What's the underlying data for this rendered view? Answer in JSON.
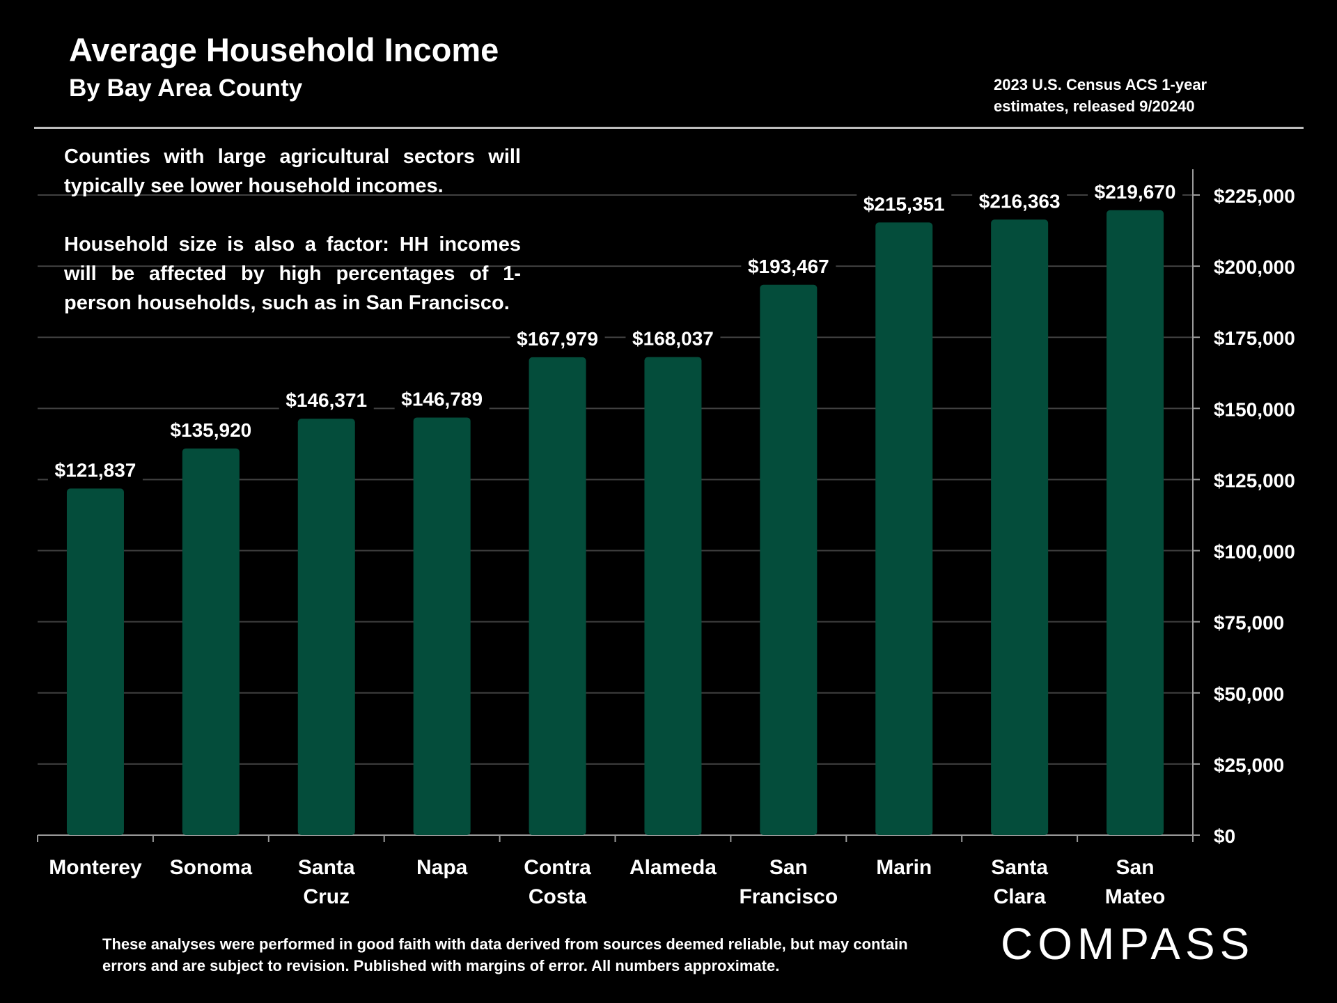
{
  "header": {
    "title": "Average Household Income",
    "subtitle": "By Bay Area County",
    "source_line1": "2023 U.S. Census ACS 1-year",
    "source_line2": "estimates, released 9/20240"
  },
  "note": {
    "paragraph1": "Counties with large agricultural sectors will typically see lower household incomes.",
    "paragraph2": "Household size is also a factor: HH incomes will be affected by high percentages of 1-person households, such as in San Francisco."
  },
  "footer": {
    "disclaimer": "These analyses were performed in good faith with data derived from sources deemed reliable, but may contain errors and are subject to revision.  Published with margins of error. All numbers approximate.",
    "logo_text": "COMPASS"
  },
  "colors": {
    "bar": "#044d3b",
    "grid": "#404040",
    "axis": "#9a9a9a",
    "text": "#ffffff",
    "background": "#000000"
  },
  "chart_data": {
    "type": "bar",
    "categories": [
      [
        "Monterey"
      ],
      [
        "Sonoma"
      ],
      [
        "Santa",
        "Cruz"
      ],
      [
        "Napa"
      ],
      [
        "Contra",
        "Costa"
      ],
      [
        "Alameda"
      ],
      [
        "San",
        "Francisco"
      ],
      [
        "Marin"
      ],
      [
        "Santa",
        "Clara"
      ],
      [
        "San",
        "Mateo"
      ]
    ],
    "values": [
      121837,
      135920,
      146371,
      146789,
      167979,
      168037,
      193467,
      215351,
      216363,
      219670
    ],
    "data_labels": [
      "$121,837",
      "$135,920",
      "$146,371",
      "$146,789",
      "$167,979",
      "$168,037",
      "$193,467",
      "$215,351",
      "$216,363",
      "$219,670"
    ],
    "ylim": [
      0,
      225000
    ],
    "yticks": [
      0,
      25000,
      50000,
      75000,
      100000,
      125000,
      150000,
      175000,
      200000,
      225000
    ],
    "ytick_labels": [
      "$0",
      "$25,000",
      "$50,000",
      "$75,000",
      "$100,000",
      "$125,000",
      "$150,000",
      "$175,000",
      "$200,000",
      "$225,000"
    ],
    "y_axis_side": "right",
    "grid": true,
    "legend": "none"
  }
}
